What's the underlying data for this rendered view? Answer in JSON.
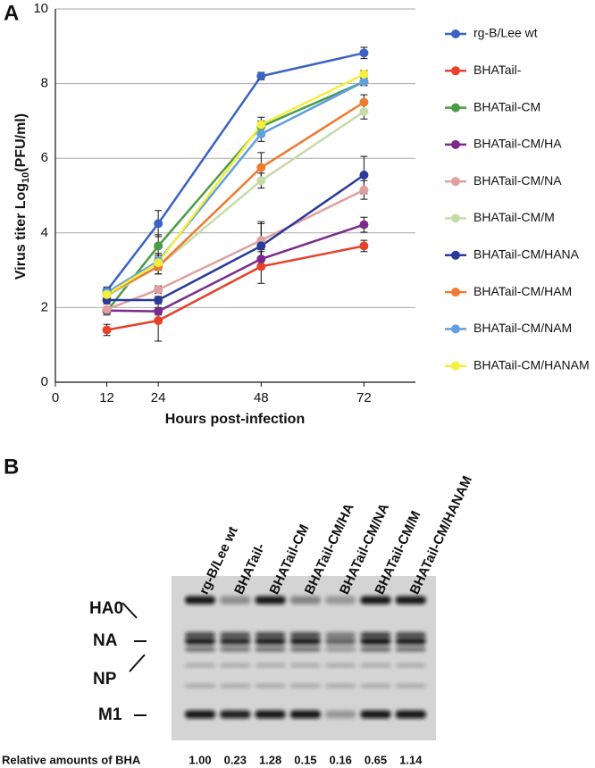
{
  "panel_labels": [
    "A",
    "B"
  ],
  "chart_data": {
    "type": "line",
    "x_label": "Hours post-infection",
    "y_label": {
      "text": "Virus titer  Log",
      "subscript": "10",
      "unit": "(PFU/ml)"
    },
    "x": [
      12,
      24,
      48,
      72
    ],
    "xlim": [
      0,
      84
    ],
    "xticks": [
      0,
      12,
      24,
      48,
      72
    ],
    "ylim": [
      0,
      10
    ],
    "yticks": [
      0,
      2,
      4,
      6,
      8,
      10
    ],
    "grid": true,
    "legend": "right",
    "series": [
      {
        "name": "rg-B/Lee wt",
        "color": "#3b62c4",
        "values": [
          2.45,
          4.25,
          8.2,
          8.82
        ],
        "errors": [
          0.1,
          0.35,
          0.1,
          0.15
        ]
      },
      {
        "name": "BHATail-",
        "color": "#e8402a",
        "values": [
          1.4,
          1.65,
          3.1,
          3.65
        ],
        "errors": [
          0.15,
          0.55,
          0.45,
          0.15
        ]
      },
      {
        "name": "BHATail-CM",
        "color": "#4c9a48",
        "values": [
          1.9,
          3.65,
          6.85,
          8.05
        ],
        "errors": [
          0.1,
          0.3,
          0.15,
          0.1
        ]
      },
      {
        "name": "BHATail-CM/HA",
        "color": "#7b2a8c",
        "values": [
          1.92,
          1.9,
          3.3,
          4.22
        ],
        "errors": [
          0.05,
          0.1,
          0.2,
          0.2
        ]
      },
      {
        "name": "BHATail-CM/NA",
        "color": "#e0a0a0",
        "values": [
          1.95,
          2.48,
          3.8,
          5.15
        ],
        "errors": [
          0.05,
          0.1,
          0.5,
          0.25
        ]
      },
      {
        "name": "BHATail-CM/M",
        "color": "#c5dca8",
        "values": [
          2.3,
          3.1,
          5.4,
          7.25
        ],
        "errors": [
          0.1,
          0.2,
          0.2,
          0.2
        ]
      },
      {
        "name": "BHATail-CM/HANA",
        "color": "#2a3a9a",
        "values": [
          2.2,
          2.2,
          3.65,
          5.55
        ],
        "errors": [
          0.1,
          0.1,
          0.6,
          0.5
        ]
      },
      {
        "name": "BHATail-CM/HAM",
        "color": "#ee7a30",
        "values": [
          2.35,
          3.1,
          5.75,
          7.5
        ],
        "errors": [
          0.1,
          0.2,
          0.4,
          0.2
        ]
      },
      {
        "name": "BHATail-CM/NAM",
        "color": "#5fa0e0",
        "values": [
          2.4,
          3.25,
          6.65,
          8.05
        ],
        "errors": [
          0.1,
          0.2,
          0.2,
          0.1
        ]
      },
      {
        "name": "BHATail-CM/HANAM",
        "color": "#f5ee3a",
        "values": [
          2.35,
          3.2,
          6.9,
          8.25
        ],
        "errors": [
          0.1,
          0.2,
          0.2,
          0.1
        ]
      }
    ]
  },
  "blot": {
    "lanes": [
      "rg-B/Lee wt",
      "BHATail-",
      "BHATail-CM",
      "BHATail-CM/HA",
      "BHATail-CM/NA",
      "BHATail-CM/M",
      "BHATail-CM/HANAM"
    ],
    "bands": [
      "HA0",
      "NA",
      "NP",
      "M1"
    ],
    "relative_label": "Relative amounts of BHA",
    "relative_amounts": [
      "1.00",
      "0.23",
      "1.28",
      "0.15",
      "0.16",
      "0.65",
      "1.14"
    ]
  }
}
